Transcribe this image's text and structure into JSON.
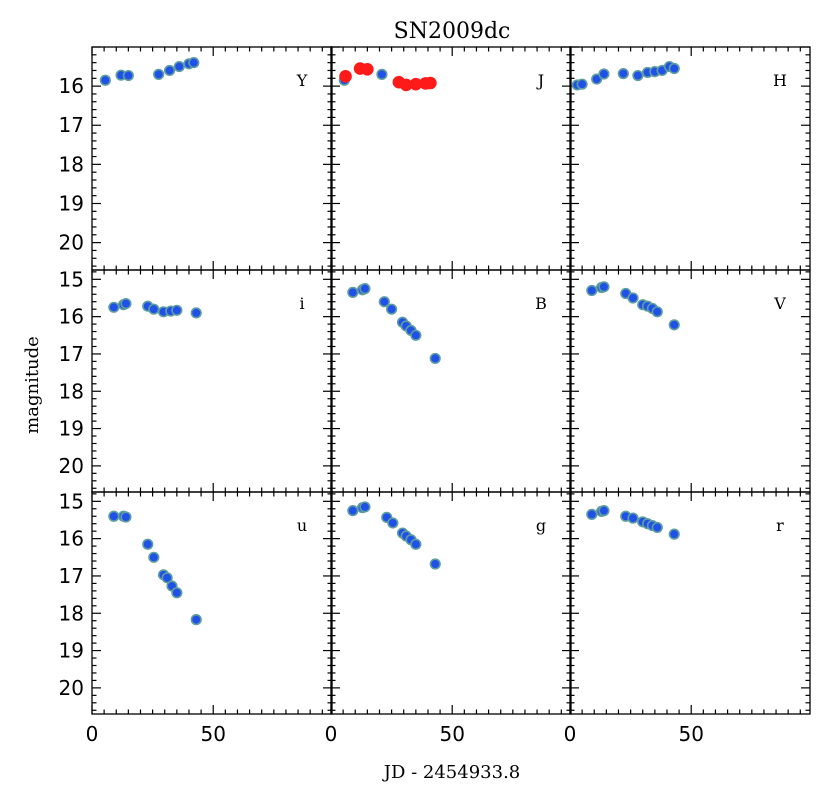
{
  "chart_data": {
    "type": "scatter",
    "title": "SN2009dc",
    "xlabel": "JD - 2454933.8",
    "ylabel": "magnitude",
    "x_ticks": [
      "0",
      "50"
    ],
    "y_ticks_top_row": [
      "16",
      "17",
      "18",
      "19",
      "20"
    ],
    "y_ticks_lower_rows": [
      "15",
      "16",
      "17",
      "18",
      "19",
      "20"
    ],
    "panels": [
      {
        "band": "Y",
        "xlim": [
          0,
          99
        ],
        "ylim": [
          20.7,
          15.0
        ],
        "series": [
          {
            "name": "blue",
            "x": [
              5.5,
              12,
              15,
              27.5,
              32,
              36,
              40,
              42
            ],
            "y": [
              15.85,
              15.72,
              15.73,
              15.7,
              15.6,
              15.5,
              15.43,
              15.4
            ]
          }
        ]
      },
      {
        "band": "J",
        "xlim": [
          0,
          99
        ],
        "ylim": [
          20.7,
          15.0
        ],
        "series": [
          {
            "name": "blue",
            "x": [
              5.5,
              21
            ],
            "y": [
              15.85,
              15.7
            ]
          },
          {
            "name": "red",
            "x": [
              6,
              12,
              15,
              28,
              31,
              35,
              39,
              41
            ],
            "y": [
              15.75,
              15.55,
              15.57,
              15.9,
              15.97,
              15.95,
              15.93,
              15.92
            ]
          }
        ]
      },
      {
        "band": "H",
        "xlim": [
          0,
          99
        ],
        "ylim": [
          20.7,
          15.0
        ],
        "series": [
          {
            "name": "blue",
            "x": [
              3,
              5,
              11,
              14,
              22,
              28,
              32,
              35,
              38,
              41,
              43
            ],
            "y": [
              15.97,
              15.95,
              15.82,
              15.69,
              15.68,
              15.73,
              15.65,
              15.63,
              15.6,
              15.5,
              15.55
            ]
          }
        ]
      },
      {
        "band": "i",
        "xlim": [
          0,
          99
        ],
        "ylim": [
          20.7,
          14.75
        ],
        "series": [
          {
            "name": "blue",
            "x": [
              9,
              13,
              14,
              23,
              25.5,
              29.5,
              32.5,
              35,
              43
            ],
            "y": [
              15.75,
              15.68,
              15.65,
              15.72,
              15.8,
              15.87,
              15.85,
              15.83,
              15.9
            ]
          }
        ]
      },
      {
        "band": "B",
        "xlim": [
          0,
          99
        ],
        "ylim": [
          20.7,
          14.75
        ],
        "series": [
          {
            "name": "blue",
            "x": [
              9,
              13,
              14,
              22,
              25,
              29.5,
              31,
              33,
              35,
              43
            ],
            "y": [
              15.35,
              15.28,
              15.25,
              15.6,
              15.8,
              16.15,
              16.25,
              16.37,
              16.5,
              17.12
            ]
          }
        ]
      },
      {
        "band": "V",
        "xlim": [
          0,
          99
        ],
        "ylim": [
          20.7,
          14.75
        ],
        "series": [
          {
            "name": "blue",
            "x": [
              9,
              13,
              14,
              23,
              26,
              30,
              32,
              34,
              36,
              43
            ],
            "y": [
              15.3,
              15.22,
              15.2,
              15.38,
              15.5,
              15.68,
              15.72,
              15.78,
              15.87,
              16.22
            ]
          }
        ]
      },
      {
        "band": "u",
        "xlim": [
          0,
          99
        ],
        "ylim": [
          20.7,
          14.75
        ],
        "series": [
          {
            "name": "blue",
            "x": [
              9,
              13,
              14,
              23,
              25.5,
              29.5,
              31,
              33,
              35,
              43
            ],
            "y": [
              15.4,
              15.4,
              15.42,
              16.15,
              16.5,
              16.97,
              17.05,
              17.27,
              17.45,
              18.17
            ]
          }
        ]
      },
      {
        "band": "g",
        "xlim": [
          0,
          99
        ],
        "ylim": [
          20.7,
          14.75
        ],
        "series": [
          {
            "name": "blue",
            "x": [
              9,
              13,
              14,
              23,
              25.5,
              29.5,
              31,
              33,
              35,
              43
            ],
            "y": [
              15.25,
              15.17,
              15.15,
              15.43,
              15.58,
              15.85,
              15.93,
              16.03,
              16.15,
              16.68
            ]
          }
        ]
      },
      {
        "band": "r",
        "xlim": [
          0,
          99
        ],
        "ylim": [
          20.7,
          14.75
        ],
        "series": [
          {
            "name": "blue",
            "x": [
              9,
              13,
              14,
              23,
              26,
              30,
              32,
              34,
              36,
              43
            ],
            "y": [
              15.35,
              15.27,
              15.25,
              15.4,
              15.45,
              15.55,
              15.6,
              15.65,
              15.7,
              15.88
            ]
          }
        ]
      }
    ],
    "colors": {
      "blue_face": "#1f50e8",
      "blue_edge": "#5f9ea0",
      "red_face": "#ff1a1a",
      "red_edge": "#ff1a1a"
    }
  }
}
